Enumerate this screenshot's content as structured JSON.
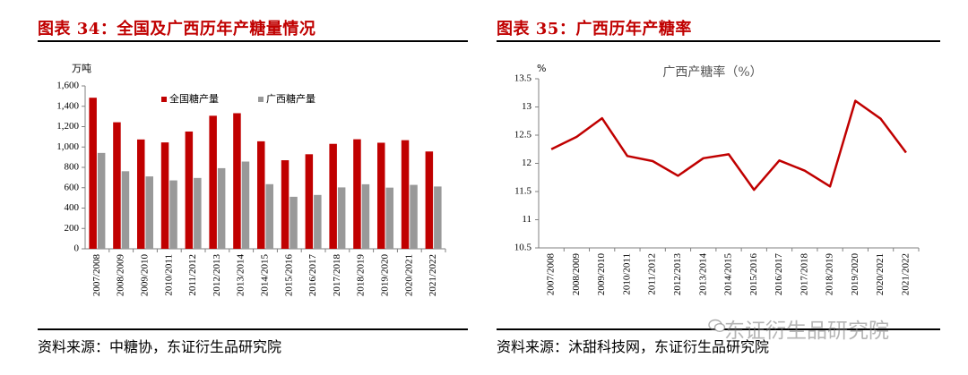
{
  "figures": {
    "left": {
      "title": "图表 34：全国及广西历年产糖量情况",
      "source": "资料来源：中糖协，东证衍生品研究院"
    },
    "right": {
      "title": "图表 35：广西历年产糖率",
      "source": "资料来源：沐甜科技网，东证衍生品研究院"
    }
  },
  "watermark": {
    "text": "东证衍生品研究院",
    "icon": "wechat-icon"
  },
  "colors": {
    "title": "#c00000",
    "national": "#c00000",
    "guangxi": "#999999",
    "line": "#c00000",
    "axis": "#808080"
  },
  "chart_data": [
    {
      "type": "bar",
      "unit_label": "万吨",
      "categories": [
        "2007/2008",
        "2008/2009",
        "2009/2010",
        "2010/2011",
        "2011/2012",
        "2012/2013",
        "2013/2014",
        "2014/2015",
        "2015/2016",
        "2016/2017",
        "2017/2018",
        "2018/2019",
        "2019/2020",
        "2020/2021",
        "2021/2022"
      ],
      "series": [
        {
          "name": "全国糖产量",
          "values": [
            1484,
            1243,
            1074,
            1045,
            1152,
            1307,
            1332,
            1056,
            870,
            929,
            1031,
            1076,
            1042,
            1067,
            956
          ]
        },
        {
          "name": "广西糖产量",
          "values": [
            942,
            762,
            711,
            672,
            696,
            792,
            857,
            635,
            511,
            529,
            603,
            634,
            601,
            628,
            612
          ]
        }
      ],
      "ylim": [
        0,
        1600
      ],
      "yticks": [
        "0",
        "200",
        "400",
        "600",
        "800",
        "1,000",
        "1,200",
        "1,400",
        "1,600"
      ],
      "legend_position": "top-center",
      "grid": false
    },
    {
      "type": "line",
      "title": "广西产糖率（%）",
      "unit_label": "%",
      "categories": [
        "2007/2008",
        "2008/2009",
        "2009/2010",
        "2010/2011",
        "2011/2012",
        "2012/2013",
        "2013/2014",
        "2014/2015",
        "2015/2016",
        "2016/2017",
        "2017/2018",
        "2018/2019",
        "2019/2020",
        "2020/2021",
        "2021/2022"
      ],
      "series": [
        {
          "values": [
            12.25,
            12.47,
            12.8,
            12.13,
            12.04,
            11.78,
            12.09,
            12.16,
            11.53,
            12.05,
            11.87,
            11.59,
            13.11,
            12.79,
            12.19
          ]
        }
      ],
      "ylim": [
        10.5,
        13.5
      ],
      "yticks": [
        "10.5",
        "11",
        "11.5",
        "12",
        "12.5",
        "13",
        "13.5"
      ],
      "grid": false
    }
  ]
}
